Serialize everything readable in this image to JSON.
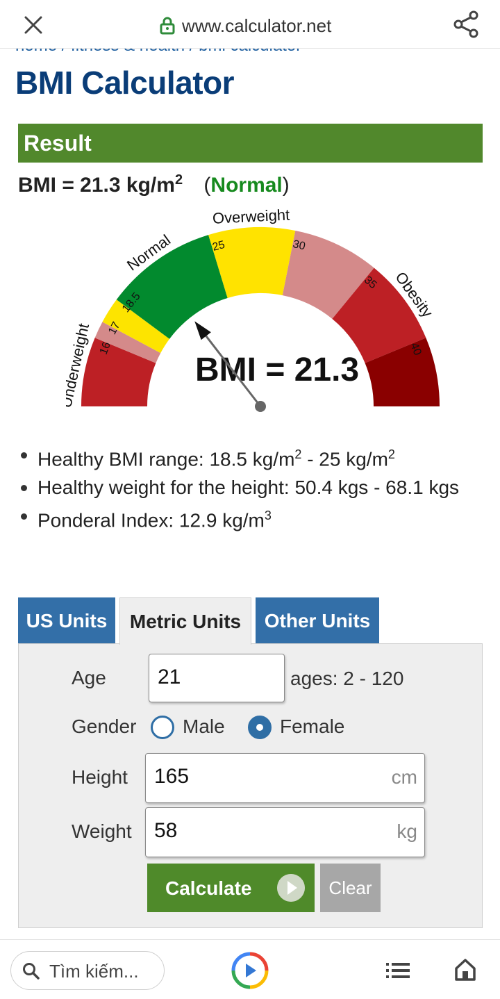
{
  "browser": {
    "url": "www.calculator.net",
    "search_placeholder": "Tìm kiếm..."
  },
  "breadcrumb": "home / fitness & health / bmi calculator",
  "page_title": "BMI Calculator",
  "result": {
    "header": "Result",
    "bmi_text": "BMI = 21.3 kg/m",
    "bmi_sup": "2",
    "paren_open": "(",
    "category": "Normal",
    "paren_close": ")",
    "category_color": "#168a1e"
  },
  "gauge": {
    "bmi": 21.3,
    "center_label": "BMI = 21.3",
    "category_labels": [
      "Underweight",
      "Normal",
      "Overweight",
      "Obesity"
    ],
    "tick_labels": [
      "16",
      "17",
      "18.5",
      "25",
      "30",
      "35",
      "40"
    ],
    "colors": {
      "severe_under": "#bd2025",
      "mild_under": "#d48a8a",
      "moderate_under": "#fde400",
      "normal": "#028a2e",
      "overweight": "#ffe300",
      "obese1": "#d48a8a",
      "obese2": "#bd2025",
      "obese3": "#8a0000"
    }
  },
  "info": {
    "range_text": "Healthy BMI range: 18.5 kg/m",
    "range_sup": "2",
    "range_text2": " - 25 kg/m",
    "range_sup2": "2",
    "weight_text": "Healthy weight for the height: 50.4 kgs - 68.1 kgs",
    "ponderal_text": "Ponderal Index: 12.9 kg/m",
    "ponderal_sup": "3"
  },
  "tabs": [
    {
      "label": "US Units",
      "active": false
    },
    {
      "label": "Metric Units",
      "active": true
    },
    {
      "label": "Other Units",
      "active": false
    }
  ],
  "form": {
    "age_label": "Age",
    "age_value": "21",
    "age_hint": "ages: 2 - 120",
    "gender_label": "Gender",
    "gender_options": [
      "Male",
      "Female"
    ],
    "gender_selected": "Female",
    "height_label": "Height",
    "height_value": "165",
    "height_unit": "cm",
    "weight_label": "Weight",
    "weight_value": "58",
    "weight_unit": "kg",
    "calculate_label": "Calculate",
    "clear_label": "Clear"
  },
  "colors": {
    "title": "#0a3d78",
    "result_bar": "#51882c",
    "tab_blue": "#336fa8",
    "calc_green": "#4f8a2a"
  }
}
